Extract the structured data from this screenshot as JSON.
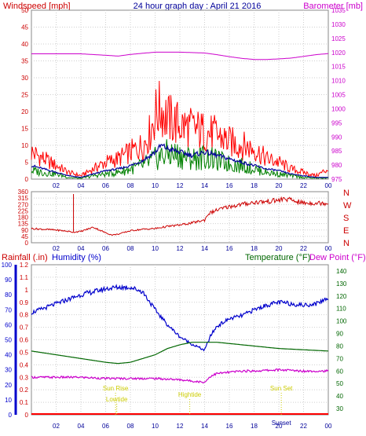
{
  "header": {
    "title": "24 hour graph day : April 21 2016",
    "left_label": "Windspeed [mph]",
    "right_label": "Barometer [mb]"
  },
  "direction_labels": [
    "N",
    "W",
    "S",
    "E",
    "N"
  ],
  "lower_labels": {
    "rainfall": "Rainfall (.in)",
    "humidity": "Humidity (%)",
    "temperature": "Temperature (°F)",
    "dewpoint": "Dew Point (°F)"
  },
  "colors": {
    "wind_gust": "#ff0000",
    "wind_avg": "#000099",
    "wind_speed": "#008000",
    "barometer": "#cc00cc",
    "direction": "#cc0000",
    "humidity": "#0000cc",
    "temperature": "#006600",
    "dewpoint": "#cc00cc",
    "rain": "#ff0000",
    "events": "#cccc00",
    "grid": "#cfcfcf"
  },
  "chart_data": [
    {
      "type": "line",
      "x_ticks": [
        "02",
        "04",
        "06",
        "08",
        "10",
        "12",
        "14",
        "16",
        "18",
        "20",
        "22",
        "00"
      ],
      "y_left": {
        "ticks": [
          0,
          5,
          10,
          15,
          20,
          25,
          30,
          35,
          40,
          45,
          50
        ],
        "range": [
          0,
          50
        ]
      },
      "y_right": {
        "ticks": [
          975,
          980,
          985,
          990,
          995,
          1000,
          1005,
          1010,
          1015,
          1020,
          1025,
          1030,
          1035
        ],
        "range": [
          975,
          1035
        ]
      },
      "series": [
        {
          "key": "gust",
          "x": [
            0,
            1,
            2,
            3,
            4,
            5,
            6,
            7,
            8,
            9,
            9.5,
            10,
            10.5,
            11,
            12,
            13,
            14,
            15,
            16,
            17,
            18,
            19,
            20,
            21,
            22,
            23,
            24
          ],
          "values": [
            8,
            6,
            4,
            2,
            1,
            3,
            5,
            6,
            8,
            10,
            13,
            19,
            21,
            18,
            16,
            15,
            14,
            13,
            11,
            10,
            9,
            6,
            5,
            3,
            2,
            1,
            3
          ]
        },
        {
          "key": "avg",
          "x": [
            0,
            1,
            2,
            3,
            4,
            5,
            6,
            7,
            8,
            9,
            10,
            10.5,
            11,
            12,
            13,
            14,
            15,
            16,
            17,
            18,
            19,
            20,
            21,
            22,
            23,
            24
          ],
          "values": [
            4,
            3,
            2,
            1,
            0.5,
            1.5,
            2.5,
            3,
            4,
            5.5,
            8,
            10,
            9,
            8,
            7,
            8,
            7,
            6,
            5,
            4,
            3,
            2.5,
            1.5,
            1,
            0.5,
            0.5
          ]
        },
        {
          "key": "speed",
          "x": [
            0,
            1,
            2,
            3,
            4,
            5,
            6,
            7,
            8,
            9,
            10,
            11,
            12,
            13,
            14,
            15,
            16,
            17,
            18,
            19,
            20,
            21,
            22,
            23,
            24
          ],
          "values": [
            2.5,
            2,
            1.5,
            0.5,
            0.2,
            1,
            1.5,
            2,
            3,
            4,
            6,
            7.5,
            7,
            6,
            6.5,
            5.5,
            4.5,
            4,
            3,
            2,
            1.5,
            1,
            0.5,
            0.3,
            0.3
          ]
        },
        {
          "key": "barometer",
          "x": [
            0,
            2,
            4,
            6,
            7,
            8,
            10,
            12,
            14,
            15,
            16,
            17,
            18,
            19,
            20,
            21,
            22,
            23,
            24
          ],
          "values": [
            1019.5,
            1019.5,
            1019.5,
            1019,
            1018.7,
            1019.3,
            1020.1,
            1020.1,
            1019.8,
            1019.2,
            1018.5,
            1017.9,
            1017.5,
            1017.5,
            1017.7,
            1018,
            1018.6,
            1019.2,
            1019.6
          ]
        }
      ]
    },
    {
      "type": "line",
      "x_ticks": [
        "02",
        "04",
        "06",
        "08",
        "10",
        "12",
        "14",
        "16",
        "18",
        "20",
        "22",
        "00"
      ],
      "y_left": {
        "ticks": [
          0,
          45,
          90,
          135,
          180,
          225,
          270,
          315,
          360
        ],
        "range": [
          0,
          360
        ]
      },
      "series": [
        {
          "key": "direction",
          "x": [
            0,
            1,
            2,
            3,
            3.4,
            4,
            5,
            6,
            6.5,
            7,
            8,
            9,
            10,
            11,
            12,
            13,
            14,
            14.3,
            15,
            16,
            17,
            18,
            19,
            20,
            20.5,
            21,
            22,
            24
          ],
          "values": [
            100,
            95,
            90,
            80,
            75,
            80,
            110,
            70,
            55,
            60,
            85,
            95,
            100,
            115,
            125,
            140,
            160,
            205,
            230,
            255,
            270,
            285,
            290,
            300,
            310,
            300,
            280,
            280
          ]
        }
      ]
    },
    {
      "type": "line",
      "x_ticks": [
        "02",
        "04",
        "06",
        "08",
        "10",
        "12",
        "14",
        "16",
        "18",
        "20",
        "22",
        "00"
      ],
      "y_left": {
        "ticks": [
          0,
          10,
          20,
          30,
          40,
          50,
          60,
          70,
          80,
          90,
          100
        ],
        "range": [
          0,
          100
        ]
      },
      "y_rain": {
        "ticks": [
          0,
          0.1,
          0.2,
          0.3,
          0.4,
          0.5,
          0.6,
          0.7,
          0.8,
          0.9,
          1,
          1.1,
          1.2
        ],
        "range": [
          0,
          1.2
        ]
      },
      "y_right": {
        "ticks": [
          30,
          40,
          50,
          60,
          70,
          80,
          90,
          100,
          110,
          120,
          130,
          140
        ],
        "range": [
          25,
          145
        ]
      },
      "series": [
        {
          "key": "humidity",
          "x": [
            0,
            1,
            2,
            3,
            4,
            5,
            6,
            7,
            8,
            9,
            10,
            11,
            12,
            13,
            14,
            14.5,
            15,
            16,
            17,
            18,
            19,
            20,
            21,
            22,
            23,
            24
          ],
          "values": [
            68,
            71,
            74,
            77,
            80,
            82,
            84,
            85,
            85,
            82,
            70,
            60,
            52,
            47,
            43,
            53,
            59,
            64,
            66,
            70,
            73,
            75,
            74,
            73,
            74,
            78
          ]
        },
        {
          "key": "temperature",
          "x": [
            0,
            2,
            4,
            6,
            7,
            8,
            10,
            11,
            12,
            13,
            14,
            15,
            16,
            18,
            20,
            22,
            24
          ],
          "values": [
            76,
            73,
            70,
            67,
            66,
            67,
            73,
            78,
            81,
            83,
            83,
            83,
            82,
            80,
            78,
            77,
            76
          ]
        },
        {
          "key": "dewpoint",
          "x": [
            0,
            2,
            4,
            6,
            8,
            10,
            12,
            13,
            14,
            14.5,
            15,
            16,
            17,
            18,
            20,
            22,
            24
          ],
          "values": [
            55,
            55,
            55,
            54,
            54,
            54,
            53,
            52,
            51,
            56,
            58,
            59,
            60,
            60,
            61,
            60,
            60
          ]
        }
      ],
      "events": [
        {
          "label": "Sun Rise",
          "hour": 6.8
        },
        {
          "label": "Lowtide",
          "hour": 6.9
        },
        {
          "label": "Hightide",
          "hour": 12.8
        },
        {
          "label": "Sun Set",
          "hour": 20.2
        },
        {
          "label": "Sunset",
          "hour": 20.2
        }
      ]
    }
  ]
}
